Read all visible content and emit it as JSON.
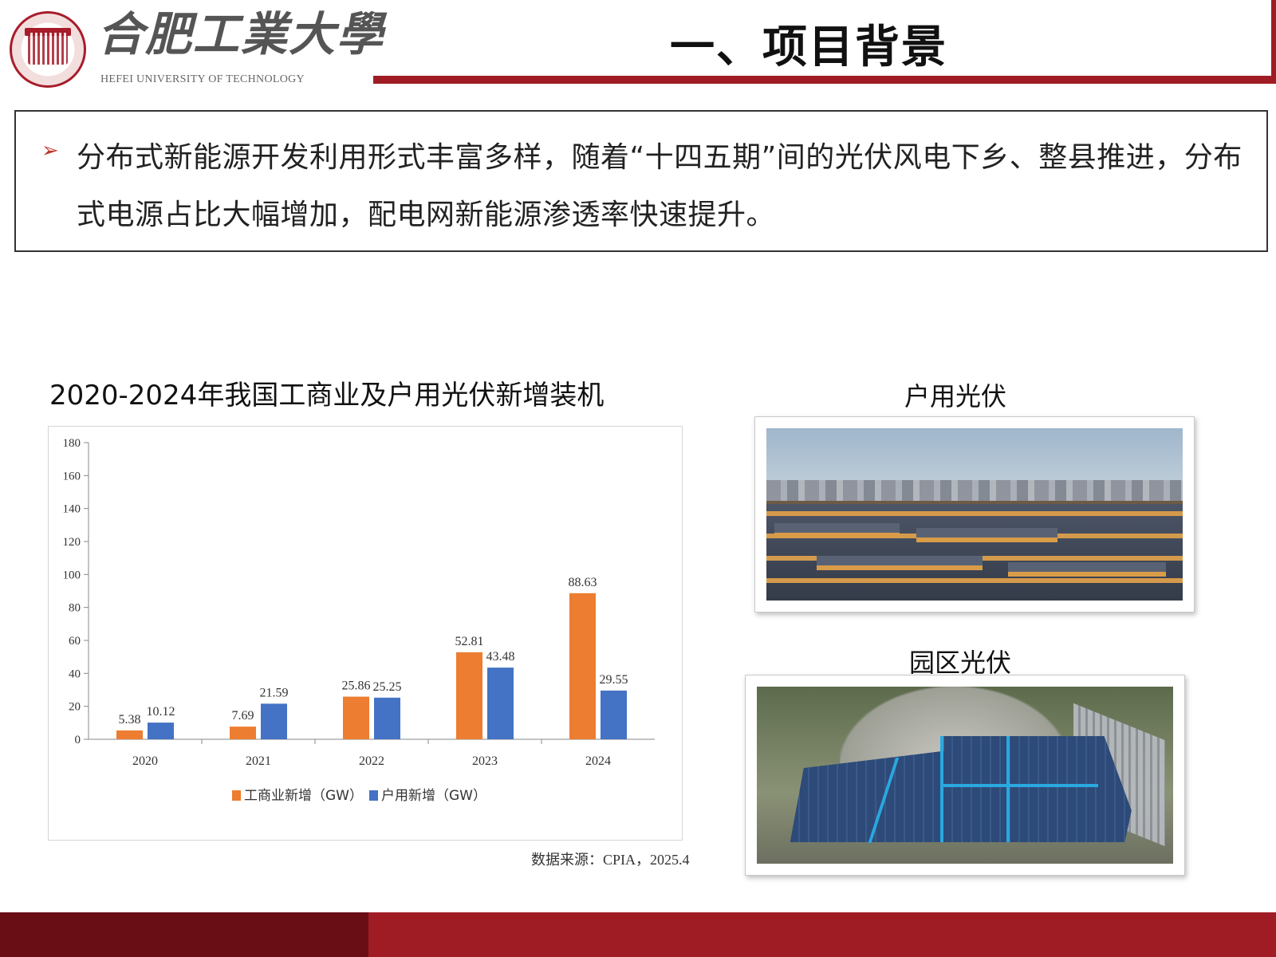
{
  "header": {
    "logo_cn": "合肥工業大學",
    "logo_en": "HEFEI UNIVERSITY OF TECHNOLOGY",
    "title": "一、项目背景"
  },
  "bullet": {
    "text": "分布式新能源开发利用形式丰富多样，随着“十四五期”间的光伏风电下乡、整县推进，分布式电源占比大幅增加，配电网新能源渗透率快速提升。"
  },
  "chart_data": {
    "type": "bar",
    "title": "2020-2024年我国工商业及户用光伏新增装机",
    "categories": [
      "2020",
      "2021",
      "2022",
      "2023",
      "2024"
    ],
    "series": [
      {
        "name": "工商业新增（GW）",
        "values": [
          5.38,
          7.69,
          25.86,
          52.81,
          88.63
        ],
        "color": "#ed7d31"
      },
      {
        "name": "户用新增（GW）",
        "values": [
          10.12,
          21.59,
          25.25,
          43.48,
          29.55
        ],
        "color": "#4472c4"
      }
    ],
    "ylim": [
      0,
      180
    ],
    "yticks": [
      0,
      20,
      40,
      60,
      80,
      100,
      120,
      140,
      160,
      180
    ],
    "legend": "bottom",
    "source": "数据来源：CPIA，2025.4"
  },
  "photos": {
    "residential_label": "户用光伏",
    "park_label": "园区光伏"
  },
  "colors": {
    "brand_red": "#a01c24",
    "brand_dark": "#6a0e16",
    "bullet_arrow": "#c0392b"
  }
}
